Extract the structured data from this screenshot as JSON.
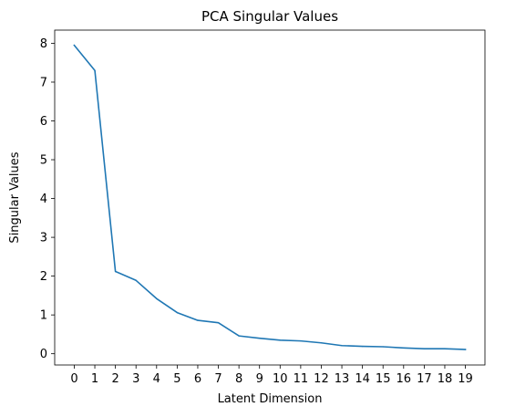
{
  "chart_data": {
    "type": "line",
    "title": "PCA Singular Values",
    "xlabel": "Latent Dimension",
    "ylabel": "Singular Values",
    "x": [
      0,
      1,
      2,
      3,
      4,
      5,
      6,
      7,
      8,
      9,
      10,
      11,
      12,
      13,
      14,
      15,
      16,
      17,
      18,
      19
    ],
    "series": [
      {
        "values": [
          7.95,
          7.3,
          2.12,
          1.89,
          1.42,
          1.06,
          0.86,
          0.8,
          0.46,
          0.4,
          0.35,
          0.33,
          0.28,
          0.21,
          0.19,
          0.18,
          0.15,
          0.13,
          0.13,
          0.11
        ],
        "color": "#1f77b4"
      }
    ],
    "xticks": [
      "0",
      "1",
      "2",
      "3",
      "4",
      "5",
      "6",
      "7",
      "8",
      "9",
      "10",
      "11",
      "12",
      "13",
      "14",
      "15",
      "16",
      "17",
      "18",
      "19"
    ],
    "yticks": [
      "0",
      "1",
      "2",
      "3",
      "4",
      "5",
      "6",
      "7",
      "8"
    ],
    "xlim": [
      -0.95,
      19.95
    ],
    "ylim": [
      -0.29,
      8.34
    ],
    "grid": false,
    "legend": "none"
  }
}
